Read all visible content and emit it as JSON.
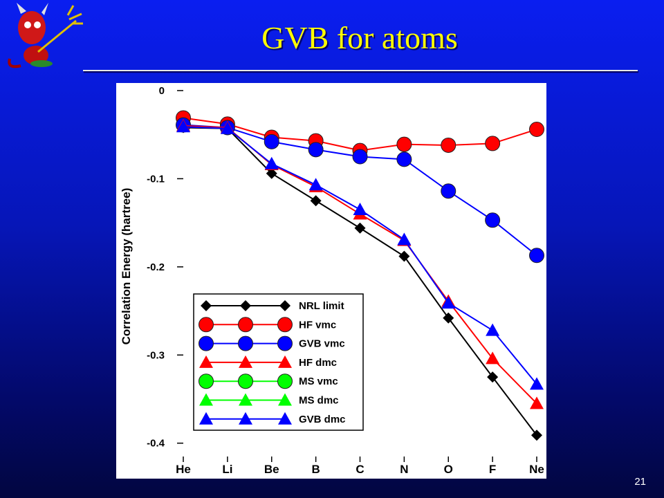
{
  "slide": {
    "title": "GVB for atoms",
    "page_number": 21
  },
  "chart_data": {
    "type": "line",
    "y_label": "Correlation Energy (hartree)",
    "categories": [
      "He",
      "Li",
      "Be",
      "B",
      "C",
      "N",
      "O",
      "F",
      "Ne"
    ],
    "ylim": [
      -0.412,
      0.002
    ],
    "yticks": [
      0,
      -0.1,
      -0.2,
      -0.3,
      -0.4
    ],
    "legend": "lower-left",
    "series": [
      {
        "name": "NRL limit",
        "color": "#000000",
        "marker": "diamond",
        "values": [
          -0.042,
          -0.043,
          -0.094,
          -0.125,
          -0.156,
          -0.188,
          -0.258,
          -0.325,
          -0.391
        ]
      },
      {
        "name": "HF vmc",
        "color": "#ff0000",
        "marker": "circle",
        "values": [
          -0.031,
          -0.038,
          -0.053,
          -0.057,
          -0.068,
          -0.061,
          -0.062,
          -0.06,
          -0.044
        ]
      },
      {
        "name": "GVB vmc",
        "color": "#0000ff",
        "marker": "circle",
        "values": [
          -0.039,
          -0.042,
          -0.058,
          -0.067,
          -0.075,
          -0.078,
          -0.114,
          -0.147,
          -0.187
        ]
      },
      {
        "name": "HF dmc",
        "color": "#ff0000",
        "marker": "triangle",
        "values": [
          -0.04,
          -0.042,
          -0.084,
          -0.109,
          -0.14,
          -0.17,
          -0.239,
          -0.304,
          -0.355
        ]
      },
      {
        "name": "MS vmc",
        "color": "#00ff00",
        "marker": "circle",
        "values": [
          null,
          null,
          null,
          null,
          null,
          null,
          null,
          null,
          null
        ]
      },
      {
        "name": "MS dmc",
        "color": "#00ff00",
        "marker": "triangle",
        "values": [
          null,
          null,
          null,
          null,
          null,
          null,
          null,
          null,
          null
        ]
      },
      {
        "name": "GVB dmc",
        "color": "#0000ff",
        "marker": "triangle",
        "values": [
          -0.041,
          -0.043,
          -0.083,
          -0.107,
          -0.135,
          -0.169,
          -0.241,
          -0.272,
          -0.333
        ]
      }
    ]
  }
}
